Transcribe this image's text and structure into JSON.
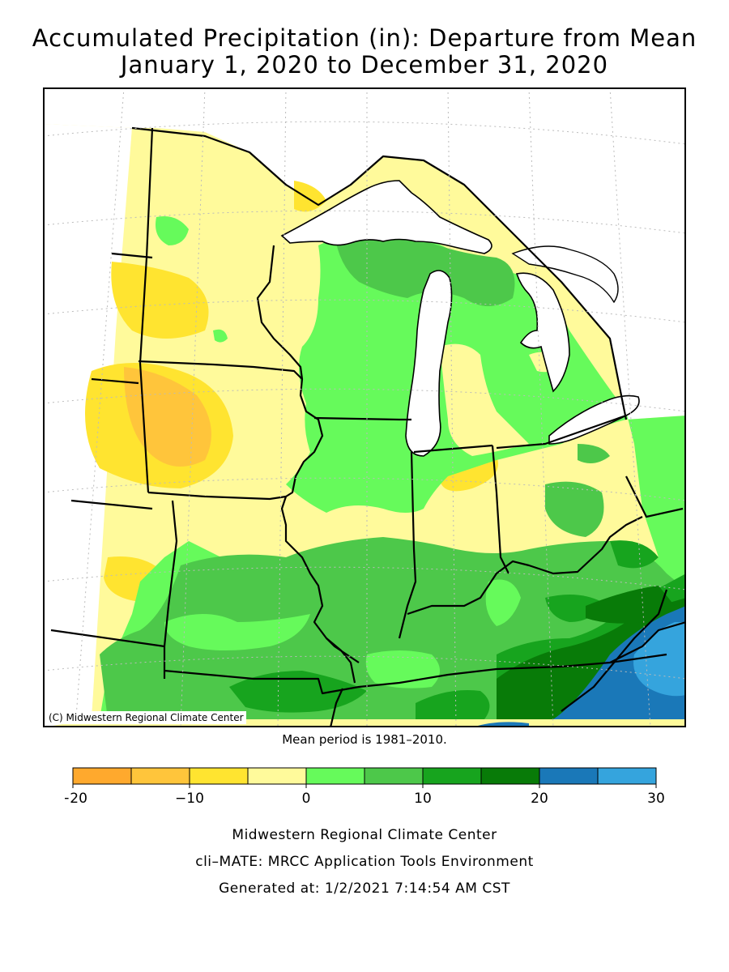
{
  "title": {
    "line1": "Accumulated Precipitation (in): Departure from Mean",
    "line2": "January 1, 2020 to December 31, 2020"
  },
  "map": {
    "credit": "(C) Midwestern Regional Climate Center",
    "mean_period": "Mean period is 1981–2010.",
    "region": "Midwest (MN, WI, MI, IA, IL, IN, OH, MO, KY)"
  },
  "legend": {
    "ticks": [
      "−20",
      "−10",
      "0",
      "10",
      "20",
      "30"
    ],
    "bins": [
      {
        "range": "-20 to -15",
        "color": "#ffa92d"
      },
      {
        "range": "-15 to -10",
        "color": "#ffc53b"
      },
      {
        "range": "-10 to -5",
        "color": "#ffe430"
      },
      {
        "range": "-5 to 0",
        "color": "#fffa9b"
      },
      {
        "range": "0 to 5",
        "color": "#66fa5b"
      },
      {
        "range": "5 to 10",
        "color": "#4dc84a"
      },
      {
        "range": "10 to 15",
        "color": "#17a41e"
      },
      {
        "range": "15 to 20",
        "color": "#087b08"
      },
      {
        "range": "20 to 25",
        "color": "#1a78b8"
      },
      {
        "range": "25 to 30",
        "color": "#35a4dd"
      }
    ]
  },
  "footer": {
    "line1": "Midwestern Regional Climate Center",
    "line2": "cli–MATE: MRCC Application Tools Environment",
    "line3": "Generated at: 1/2/2021 7:14:54 AM CST"
  }
}
